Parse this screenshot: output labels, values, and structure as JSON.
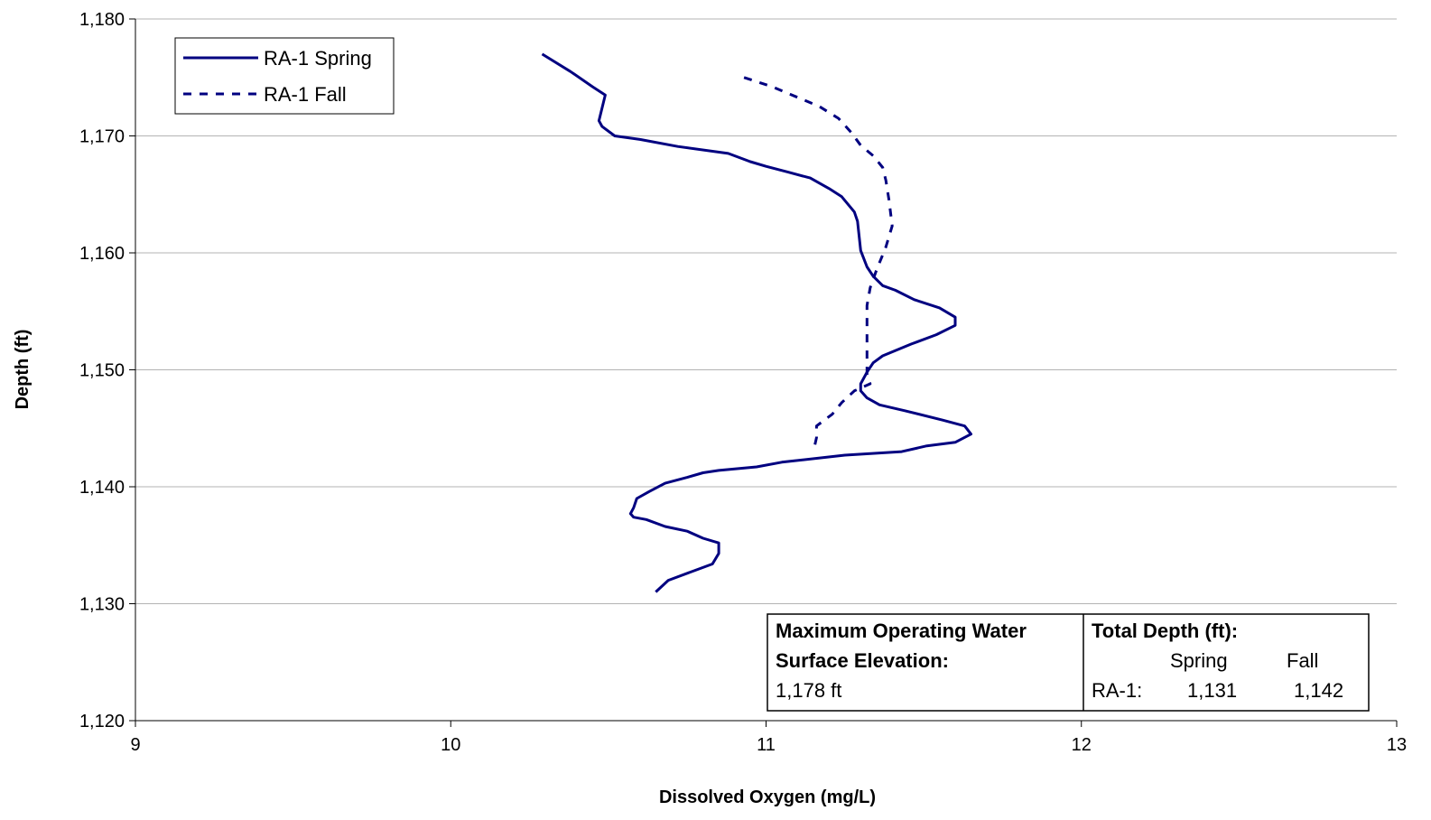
{
  "chart_data": {
    "type": "line",
    "xlabel": "Dissolved Oxygen (mg/L)",
    "ylabel": "Depth (ft)",
    "xlim": [
      9,
      13
    ],
    "ylim": [
      1120,
      1180
    ],
    "x_ticks": [
      "9",
      "10",
      "11",
      "12",
      "13"
    ],
    "y_ticks": [
      "1,120",
      "1,130",
      "1,140",
      "1,150",
      "1,160",
      "1,170",
      "1,180"
    ],
    "grid": "horizontal",
    "legend_position": "top-left",
    "series": [
      {
        "name": "RA-1 Spring",
        "style": "solid",
        "color": "#000080",
        "points": [
          [
            10.29,
            1177
          ],
          [
            10.38,
            1175.5
          ],
          [
            10.45,
            1174.2
          ],
          [
            10.49,
            1173.5
          ],
          [
            10.47,
            1171.3
          ],
          [
            10.48,
            1170.8
          ],
          [
            10.52,
            1170
          ],
          [
            10.6,
            1169.7
          ],
          [
            10.72,
            1169.1
          ],
          [
            10.88,
            1168.5
          ],
          [
            10.95,
            1167.8
          ],
          [
            11.0,
            1167.4
          ],
          [
            11.07,
            1166.9
          ],
          [
            11.14,
            1166.4
          ],
          [
            11.2,
            1165.5
          ],
          [
            11.24,
            1164.8
          ],
          [
            11.28,
            1163.5
          ],
          [
            11.29,
            1162.7
          ],
          [
            11.3,
            1160.2
          ],
          [
            11.32,
            1158.8
          ],
          [
            11.34,
            1158
          ],
          [
            11.37,
            1157.2
          ],
          [
            11.41,
            1156.8
          ],
          [
            11.47,
            1156
          ],
          [
            11.55,
            1155.3
          ],
          [
            11.6,
            1154.5
          ],
          [
            11.6,
            1153.8
          ],
          [
            11.54,
            1153
          ],
          [
            11.46,
            1152.2
          ],
          [
            11.37,
            1151.2
          ],
          [
            11.34,
            1150.6
          ],
          [
            11.32,
            1149.8
          ],
          [
            11.3,
            1148.8
          ],
          [
            11.3,
            1148.2
          ],
          [
            11.32,
            1147.6
          ],
          [
            11.36,
            1147
          ],
          [
            11.44,
            1146.5
          ],
          [
            11.56,
            1145.7
          ],
          [
            11.63,
            1145.2
          ],
          [
            11.65,
            1144.5
          ],
          [
            11.6,
            1143.8
          ],
          [
            11.51,
            1143.5
          ],
          [
            11.43,
            1143
          ],
          [
            11.25,
            1142.7
          ],
          [
            11.05,
            1142.1
          ],
          [
            10.97,
            1141.7
          ],
          [
            10.85,
            1141.4
          ],
          [
            10.8,
            1141.2
          ],
          [
            10.75,
            1140.8
          ],
          [
            10.68,
            1140.3
          ],
          [
            10.63,
            1139.6
          ],
          [
            10.59,
            1139
          ],
          [
            10.58,
            1138.2
          ],
          [
            10.57,
            1137.7
          ],
          [
            10.58,
            1137.4
          ],
          [
            10.62,
            1137.2
          ],
          [
            10.68,
            1136.6
          ],
          [
            10.75,
            1136.2
          ],
          [
            10.8,
            1135.6
          ],
          [
            10.85,
            1135.2
          ],
          [
            10.85,
            1134.3
          ],
          [
            10.83,
            1133.4
          ],
          [
            10.76,
            1132.7
          ],
          [
            10.69,
            1132
          ],
          [
            10.65,
            1131
          ]
        ]
      },
      {
        "name": "RA-1 Fall",
        "style": "dashed",
        "color": "#000080",
        "points": [
          [
            10.93,
            1175
          ],
          [
            11.02,
            1174.2
          ],
          [
            11.1,
            1173.3
          ],
          [
            11.17,
            1172.5
          ],
          [
            11.23,
            1171.5
          ],
          [
            11.27,
            1170.3
          ],
          [
            11.3,
            1169.2
          ],
          [
            11.34,
            1168.3
          ],
          [
            11.37,
            1167.3
          ],
          [
            11.38,
            1166.2
          ],
          [
            11.39,
            1164.5
          ],
          [
            11.4,
            1162.3
          ],
          [
            11.38,
            1160.5
          ],
          [
            11.35,
            1158.5
          ],
          [
            11.33,
            1157
          ],
          [
            11.32,
            1155.5
          ],
          [
            11.32,
            1153.8
          ],
          [
            11.32,
            1152.3
          ],
          [
            11.32,
            1150.7
          ],
          [
            11.32,
            1149.5
          ],
          [
            11.33,
            1148.8
          ],
          [
            11.28,
            1148.2
          ],
          [
            11.24,
            1147.2
          ],
          [
            11.21,
            1146.2
          ],
          [
            11.16,
            1145.2
          ],
          [
            11.16,
            1144.2
          ],
          [
            11.15,
            1143
          ]
        ]
      }
    ],
    "annotation": {
      "left_line1": "Maximum Operating Water",
      "left_line2": "Surface Elevation:",
      "left_value": "1,178 ft",
      "right_title": "Total Depth (ft):",
      "col_spring": "Spring",
      "col_fall": "Fall",
      "row_label": "RA-1:",
      "spring_value": "1,131",
      "fall_value": "1,142"
    }
  }
}
